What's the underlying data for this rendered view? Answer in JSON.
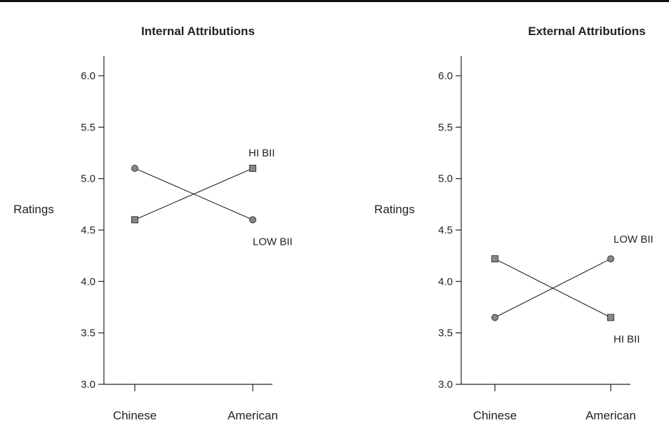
{
  "chart_data": [
    {
      "type": "line",
      "title": "Internal Attributions",
      "ylabel": "Ratings",
      "xlabel": "",
      "categories": [
        "Chinese",
        "American"
      ],
      "ylim": [
        3.0,
        6.0
      ],
      "yticks": [
        "3.0",
        "3.5",
        "4.0",
        "4.5",
        "5.0",
        "5.5",
        "6.0"
      ],
      "series": [
        {
          "name": "HI BII",
          "marker": "square",
          "values": [
            4.6,
            5.1
          ]
        },
        {
          "name": "LOW BII",
          "marker": "circle",
          "values": [
            5.1,
            4.6
          ]
        }
      ],
      "grid": false
    },
    {
      "type": "line",
      "title": "External Attributions",
      "ylabel": "Ratings",
      "xlabel": "",
      "categories": [
        "Chinese",
        "American"
      ],
      "ylim": [
        3.0,
        6.0
      ],
      "yticks": [
        "3.0",
        "3.5",
        "4.0",
        "4.5",
        "5.0",
        "5.5",
        "6.0"
      ],
      "series": [
        {
          "name": "HI BII",
          "marker": "square",
          "values": [
            4.22,
            3.65
          ]
        },
        {
          "name": "LOW BII",
          "marker": "circle",
          "values": [
            3.65,
            4.22
          ]
        }
      ],
      "grid": false
    }
  ],
  "colors": {
    "line": "#222222",
    "marker_fill": "#888888",
    "marker_stroke": "#333333"
  }
}
